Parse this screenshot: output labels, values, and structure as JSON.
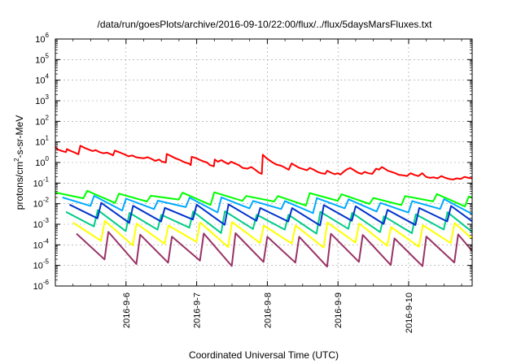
{
  "chart_data": {
    "type": "line",
    "title": "/data/run/goesPlots/archive/2016-09-10/22:00/flux/../flux/5daysMarsFluxes.txt",
    "xlabel": "Coordinated Universal Time (UTC)",
    "ylabel": {
      "main": "protons/cm",
      "sup": "2",
      "rest": "-s-sr-MeV"
    },
    "x_range": [
      "2016-09-05 00:00",
      "2016-09-10 22:00"
    ],
    "x_ticks": [
      "2016-9-6",
      "2016-9-7",
      "2016-9-8",
      "2016-9-9",
      "2016-9-10"
    ],
    "y_scale": "log",
    "ylim": [
      1e-06,
      1000000.0
    ],
    "y_ticks": [
      {
        "base": "10",
        "exp": "-6"
      },
      {
        "base": "10",
        "exp": "-5"
      },
      {
        "base": "10",
        "exp": "-4"
      },
      {
        "base": "10",
        "exp": "-3"
      },
      {
        "base": "10",
        "exp": "-2"
      },
      {
        "base": "10",
        "exp": "-1"
      },
      {
        "base": "10",
        "exp": "0"
      },
      {
        "base": "10",
        "exp": "1"
      },
      {
        "base": "10",
        "exp": "2"
      },
      {
        "base": "10",
        "exp": "3"
      },
      {
        "base": "10",
        "exp": "4"
      },
      {
        "base": "10",
        "exp": "5"
      },
      {
        "base": "10",
        "exp": "6"
      }
    ],
    "grid": "dashed",
    "legend": "none",
    "series": [
      {
        "color": "#ff0000",
        "points": [
          [
            0.0,
            5.5
          ],
          [
            0.15,
            4.2
          ],
          [
            0.35,
            3.6
          ],
          [
            0.55,
            3.2
          ],
          [
            0.6,
            4.5
          ],
          [
            0.75,
            3.8
          ],
          [
            0.95,
            3.2
          ],
          [
            1.2,
            2.5
          ],
          [
            1.3,
            6.5
          ],
          [
            1.55,
            5.0
          ],
          [
            1.75,
            4.2
          ],
          [
            1.95,
            3.6
          ],
          [
            2.1,
            4.0
          ],
          [
            2.3,
            3.2
          ],
          [
            2.5,
            2.8
          ],
          [
            2.7,
            3.0
          ],
          [
            2.9,
            2.5
          ],
          [
            3.0,
            2.2
          ],
          [
            3.1,
            3.8
          ],
          [
            3.3,
            3.2
          ],
          [
            3.55,
            2.6
          ],
          [
            3.8,
            2.0
          ],
          [
            4.0,
            2.2
          ],
          [
            4.2,
            1.8
          ],
          [
            4.4,
            1.7
          ],
          [
            4.6,
            1.6
          ],
          [
            4.8,
            1.8
          ],
          [
            5.0,
            1.5
          ],
          [
            5.2,
            1.2
          ],
          [
            5.4,
            1.4
          ],
          [
            5.55,
            1.1
          ],
          [
            5.75,
            1.0
          ],
          [
            5.8,
            2.6
          ],
          [
            6.0,
            2.1
          ],
          [
            6.25,
            1.6
          ],
          [
            6.5,
            1.3
          ],
          [
            6.75,
            1.0
          ],
          [
            6.95,
            0.9
          ],
          [
            7.05,
            0.75
          ],
          [
            7.1,
            1.9
          ],
          [
            7.35,
            1.6
          ],
          [
            7.55,
            1.3
          ],
          [
            7.75,
            1.1
          ],
          [
            7.9,
            1.0
          ],
          [
            8.05,
            0.75
          ],
          [
            8.25,
            0.65
          ],
          [
            8.3,
            1.4
          ],
          [
            8.45,
            1.1
          ],
          [
            8.65,
            1.3
          ],
          [
            8.85,
            1.0
          ],
          [
            9.0,
            0.85
          ],
          [
            9.15,
            1.1
          ],
          [
            9.35,
            0.9
          ],
          [
            9.55,
            0.75
          ],
          [
            9.75,
            0.55
          ],
          [
            10.0,
            0.5
          ],
          [
            10.2,
            0.6
          ],
          [
            10.4,
            0.45
          ],
          [
            10.6,
            0.32
          ],
          [
            10.75,
            0.28
          ],
          [
            10.8,
            2.4
          ],
          [
            11.0,
            1.6
          ],
          [
            11.25,
            1.1
          ],
          [
            11.5,
            0.8
          ],
          [
            11.75,
            0.7
          ],
          [
            11.9,
            0.6
          ],
          [
            12.05,
            0.5
          ],
          [
            12.15,
            0.45
          ],
          [
            12.3,
            0.9
          ],
          [
            12.5,
            0.7
          ],
          [
            12.7,
            0.55
          ],
          [
            12.9,
            0.48
          ],
          [
            13.1,
            0.42
          ],
          [
            13.25,
            0.55
          ],
          [
            13.45,
            0.45
          ],
          [
            13.65,
            0.35
          ],
          [
            13.85,
            0.3
          ],
          [
            14.05,
            0.28
          ],
          [
            14.15,
            0.4
          ],
          [
            14.35,
            0.32
          ],
          [
            14.55,
            0.27
          ],
          [
            14.7,
            0.3
          ],
          [
            14.85,
            0.26
          ],
          [
            15.0,
            0.35
          ],
          [
            15.15,
            0.45
          ],
          [
            15.35,
            0.55
          ],
          [
            15.55,
            0.42
          ],
          [
            15.75,
            0.32
          ],
          [
            15.95,
            0.28
          ],
          [
            16.1,
            0.35
          ],
          [
            16.3,
            0.3
          ],
          [
            16.5,
            0.28
          ],
          [
            16.7,
            0.5
          ],
          [
            16.85,
            0.45
          ],
          [
            17.0,
            0.6
          ],
          [
            17.15,
            0.5
          ],
          [
            17.3,
            0.4
          ],
          [
            17.5,
            0.35
          ],
          [
            17.7,
            0.3
          ],
          [
            17.9,
            0.25
          ],
          [
            18.1,
            0.24
          ],
          [
            18.3,
            0.22
          ],
          [
            18.5,
            0.3
          ],
          [
            18.7,
            0.25
          ],
          [
            18.9,
            0.22
          ],
          [
            19.1,
            0.3
          ],
          [
            19.3,
            0.2
          ],
          [
            19.5,
            0.18
          ],
          [
            19.7,
            0.19
          ],
          [
            19.9,
            0.17
          ],
          [
            20.1,
            0.22
          ],
          [
            20.3,
            0.18
          ],
          [
            20.5,
            0.16
          ],
          [
            20.7,
            0.15
          ],
          [
            20.9,
            0.17
          ],
          [
            21.1,
            0.16
          ],
          [
            21.3,
            0.2
          ],
          [
            21.5,
            0.18
          ],
          [
            21.7,
            0.17
          ]
        ]
      },
      {
        "color": "#00ff00",
        "sawtooth": {
          "start": 0.0,
          "period": 0.45,
          "peak": [
            0.035,
            0.022
          ],
          "trough": [
            0.014,
            0.009
          ]
        }
      },
      {
        "color": "#00aaff",
        "sawtooth": {
          "start": 0.1,
          "period": 0.45,
          "peak": [
            0.02,
            0.013
          ],
          "trough": [
            0.006,
            0.004
          ]
        }
      },
      {
        "color": "#0033cc",
        "sawtooth": {
          "start": 0.2,
          "period": 0.45,
          "peak": [
            0.009,
            0.006
          ],
          "trough": [
            0.0015,
            0.001
          ]
        }
      },
      {
        "color": "#00cc88",
        "sawtooth": {
          "start": 0.15,
          "period": 0.45,
          "peak": [
            0.004,
            0.003
          ],
          "trough": [
            0.0006,
            0.0004
          ]
        }
      },
      {
        "color": "#ffff00",
        "sawtooth": {
          "start": 0.25,
          "period": 0.45,
          "peak": [
            0.0012,
            0.0009
          ],
          "trough": [
            0.00012,
            9e-05
          ]
        }
      },
      {
        "color": "#993366",
        "sawtooth": {
          "start": 0.3,
          "period": 0.45,
          "peak": [
            0.00035,
            0.00025
          ],
          "trough": [
            1.5e-05,
            1e-05
          ]
        }
      }
    ]
  }
}
